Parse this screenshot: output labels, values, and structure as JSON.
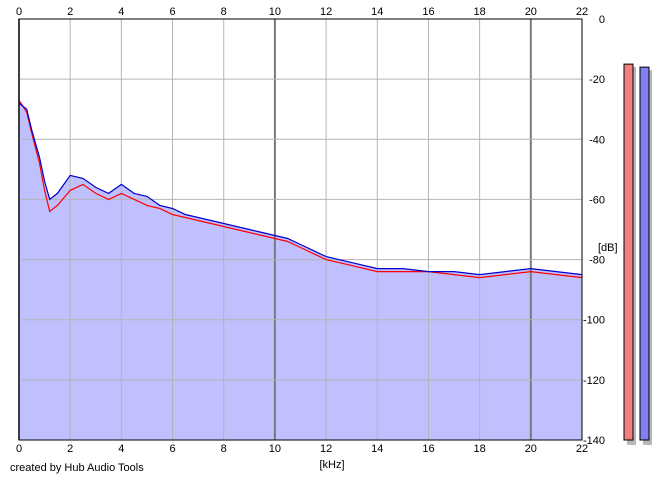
{
  "credit": "created by Hub Audio Tools",
  "chart_data": {
    "type": "area",
    "xlabel": "[kHz]",
    "ylabel": "[dB]",
    "xlim": [
      0,
      22
    ],
    "ylim": [
      -140,
      0
    ],
    "x_ticks": [
      0,
      2,
      4,
      6,
      8,
      10,
      12,
      14,
      16,
      18,
      20,
      22
    ],
    "y_ticks": [
      0,
      -20,
      -40,
      -60,
      -80,
      -100,
      -120,
      -140
    ],
    "grid": true,
    "colors": {
      "fill": "#c0c0ff",
      "series_1": "#ff0000",
      "series_2": "#0000cc",
      "grid": "#b4b4b4",
      "major_grid": "#7a7a7a",
      "meter_1": "#f08080",
      "meter_2": "#8080f0"
    },
    "series": [
      {
        "values": [
          [
            0,
            -27
          ],
          [
            0.3,
            -31
          ],
          [
            0.5,
            -38
          ],
          [
            0.8,
            -48
          ],
          [
            1,
            -57
          ],
          [
            1.2,
            -64
          ],
          [
            1.5,
            -62
          ],
          [
            2,
            -57
          ],
          [
            2.5,
            -55
          ],
          [
            3,
            -58
          ],
          [
            3.5,
            -60
          ],
          [
            4,
            -58
          ],
          [
            4.5,
            -60
          ],
          [
            5,
            -62
          ],
          [
            5.5,
            -63
          ],
          [
            6,
            -65
          ],
          [
            6.5,
            -66
          ],
          [
            7,
            -67
          ],
          [
            7.5,
            -68
          ],
          [
            8,
            -69
          ],
          [
            8.5,
            -70
          ],
          [
            9,
            -71
          ],
          [
            9.5,
            -72
          ],
          [
            10,
            -73
          ],
          [
            10.5,
            -74
          ],
          [
            11,
            -76
          ],
          [
            11.5,
            -78
          ],
          [
            12,
            -80
          ],
          [
            12.5,
            -81
          ],
          [
            13,
            -82
          ],
          [
            14,
            -84
          ],
          [
            15,
            -84
          ],
          [
            16,
            -84
          ],
          [
            17,
            -85
          ],
          [
            18,
            -86
          ],
          [
            19,
            -85
          ],
          [
            20,
            -84
          ],
          [
            21,
            -85
          ],
          [
            22,
            -86
          ]
        ]
      },
      {
        "values": [
          [
            0,
            -28
          ],
          [
            0.3,
            -30
          ],
          [
            0.5,
            -37
          ],
          [
            0.8,
            -46
          ],
          [
            1,
            -54
          ],
          [
            1.2,
            -60
          ],
          [
            1.5,
            -58
          ],
          [
            2,
            -52
          ],
          [
            2.5,
            -53
          ],
          [
            3,
            -56
          ],
          [
            3.5,
            -58
          ],
          [
            4,
            -55
          ],
          [
            4.5,
            -58
          ],
          [
            5,
            -59
          ],
          [
            5.5,
            -62
          ],
          [
            6,
            -63
          ],
          [
            6.5,
            -65
          ],
          [
            7,
            -66
          ],
          [
            7.5,
            -67
          ],
          [
            8,
            -68
          ],
          [
            8.5,
            -69
          ],
          [
            9,
            -70
          ],
          [
            9.5,
            -71
          ],
          [
            10,
            -72
          ],
          [
            10.5,
            -73
          ],
          [
            11,
            -75
          ],
          [
            11.5,
            -77
          ],
          [
            12,
            -79
          ],
          [
            12.5,
            -80
          ],
          [
            13,
            -81
          ],
          [
            14,
            -83
          ],
          [
            15,
            -83
          ],
          [
            16,
            -84
          ],
          [
            17,
            -84
          ],
          [
            18,
            -85
          ],
          [
            19,
            -84
          ],
          [
            20,
            -83
          ],
          [
            21,
            -84
          ],
          [
            22,
            -85
          ]
        ]
      }
    ],
    "level_meters_db": [
      -15,
      -16
    ]
  }
}
